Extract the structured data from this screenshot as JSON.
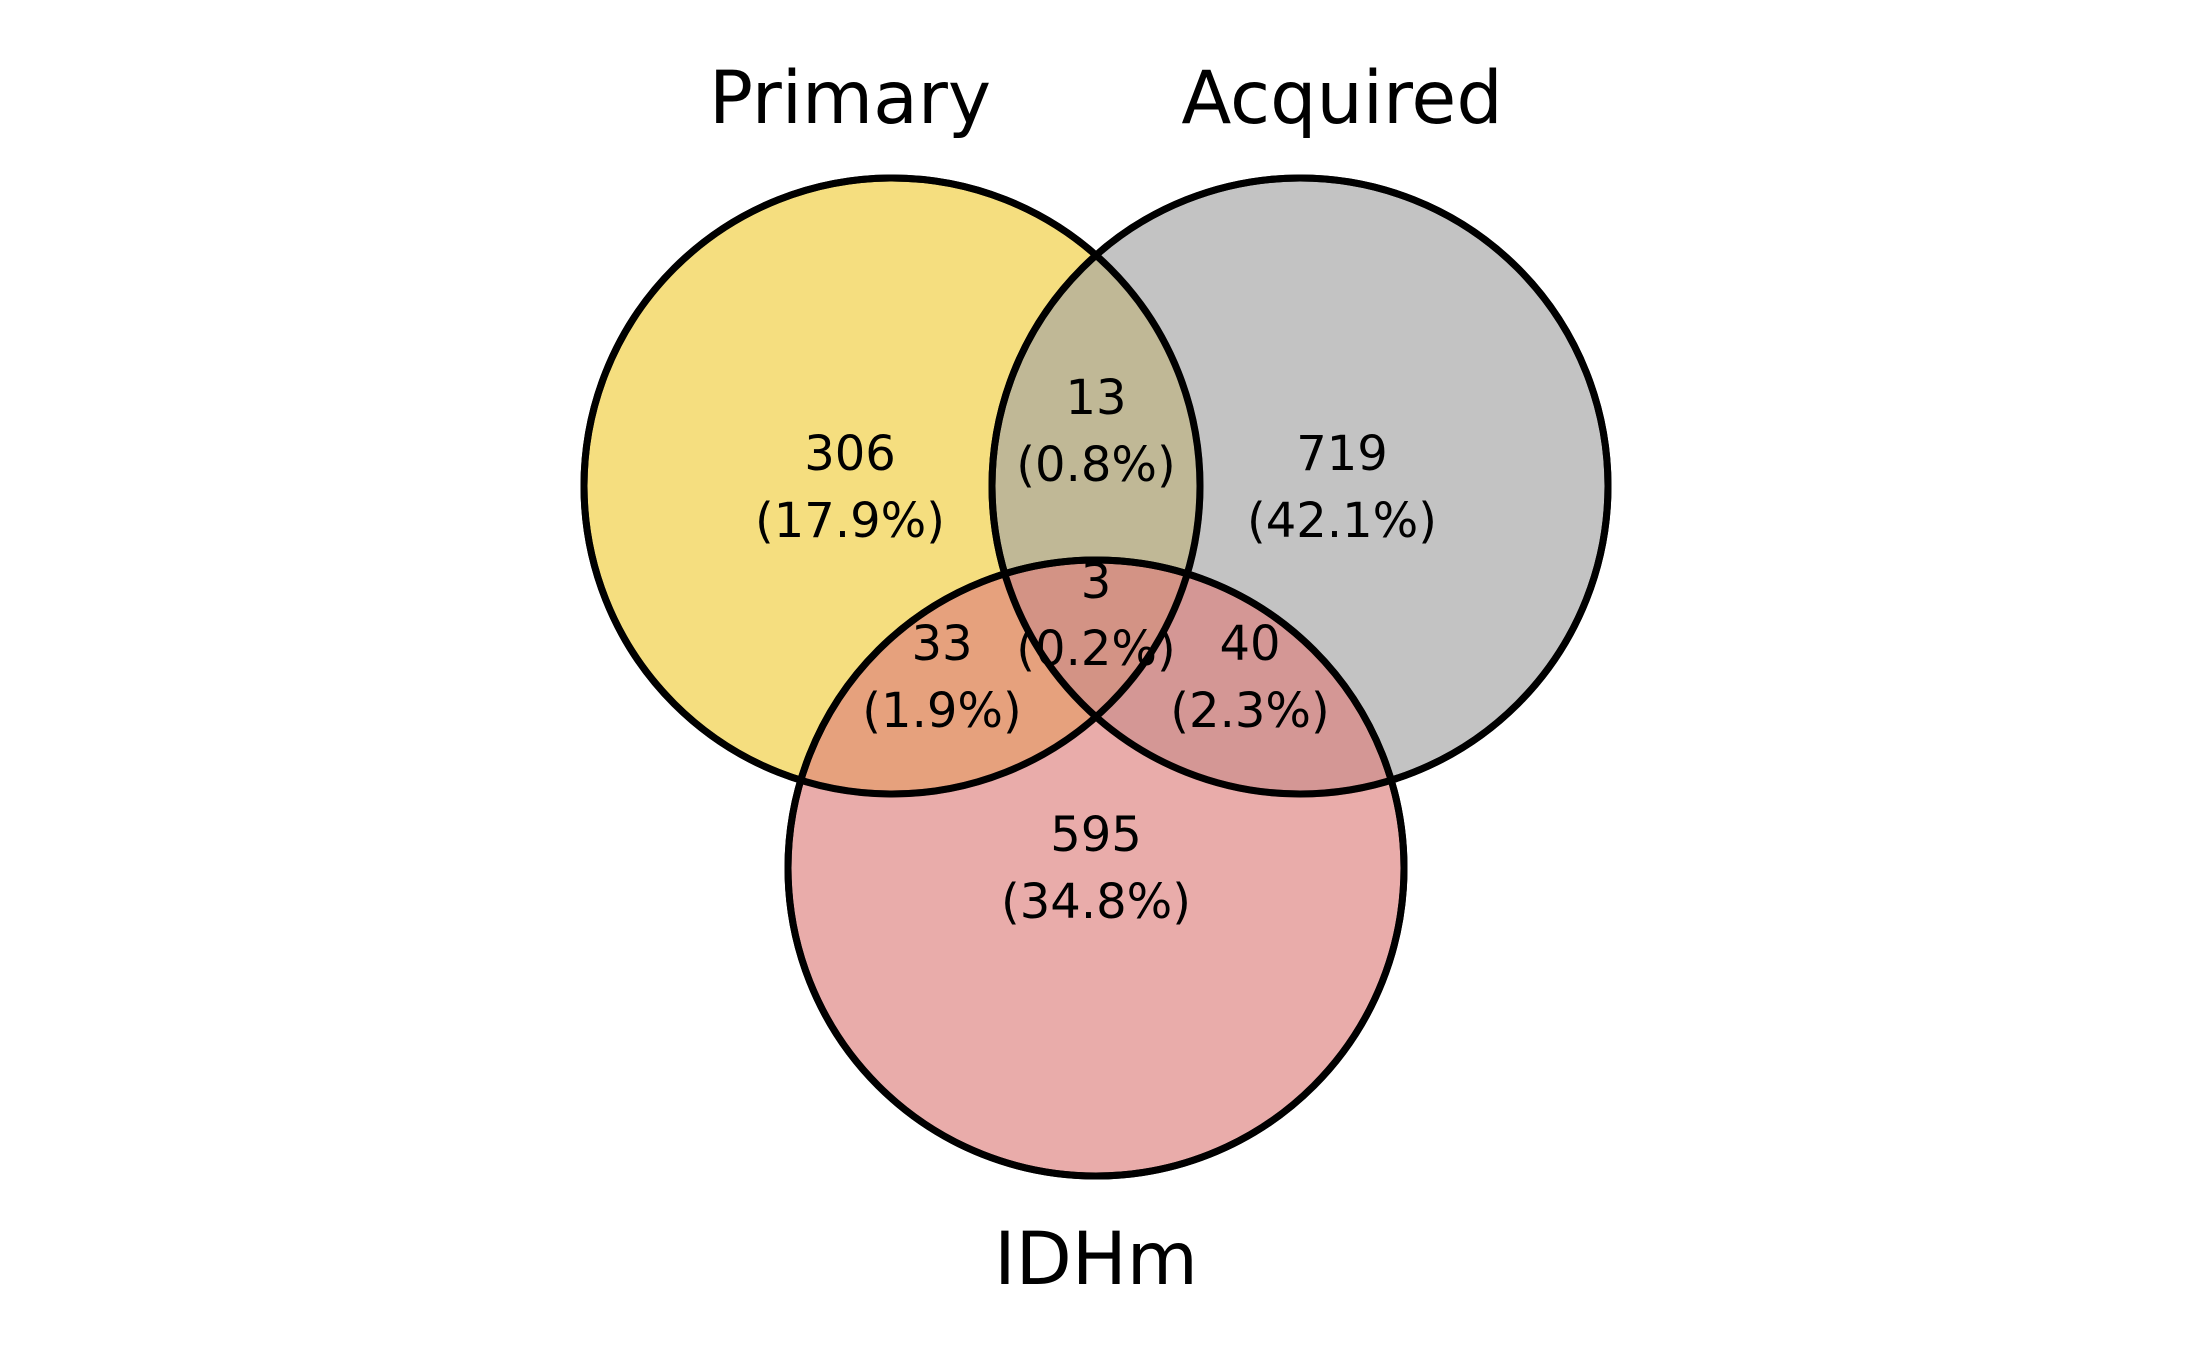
{
  "diagram": {
    "type": "venn3",
    "sets": [
      {
        "id": "primary",
        "label": "Primary",
        "color": "#f0cc3a",
        "opacity": 0.65
      },
      {
        "id": "acquired",
        "label": "Acquired",
        "color": "#a3a3a3",
        "opacity": 0.65
      },
      {
        "id": "idhm",
        "label": "IDHm",
        "color": "#dd807d",
        "opacity": 0.65
      }
    ],
    "regions": {
      "primary_only": {
        "count": "306",
        "percent": "(17.9%)"
      },
      "acquired_only": {
        "count": "719",
        "percent": "(42.1%)"
      },
      "idhm_only": {
        "count": "595",
        "percent": "(34.8%)"
      },
      "primary_acquired": {
        "count": "13",
        "percent": "(0.8%)"
      },
      "primary_idhm": {
        "count": "33",
        "percent": "(1.9%)"
      },
      "acquired_idhm": {
        "count": "40",
        "percent": "(2.3%)"
      },
      "all_three": {
        "count": "3",
        "percent": "(0.2%)"
      }
    }
  }
}
